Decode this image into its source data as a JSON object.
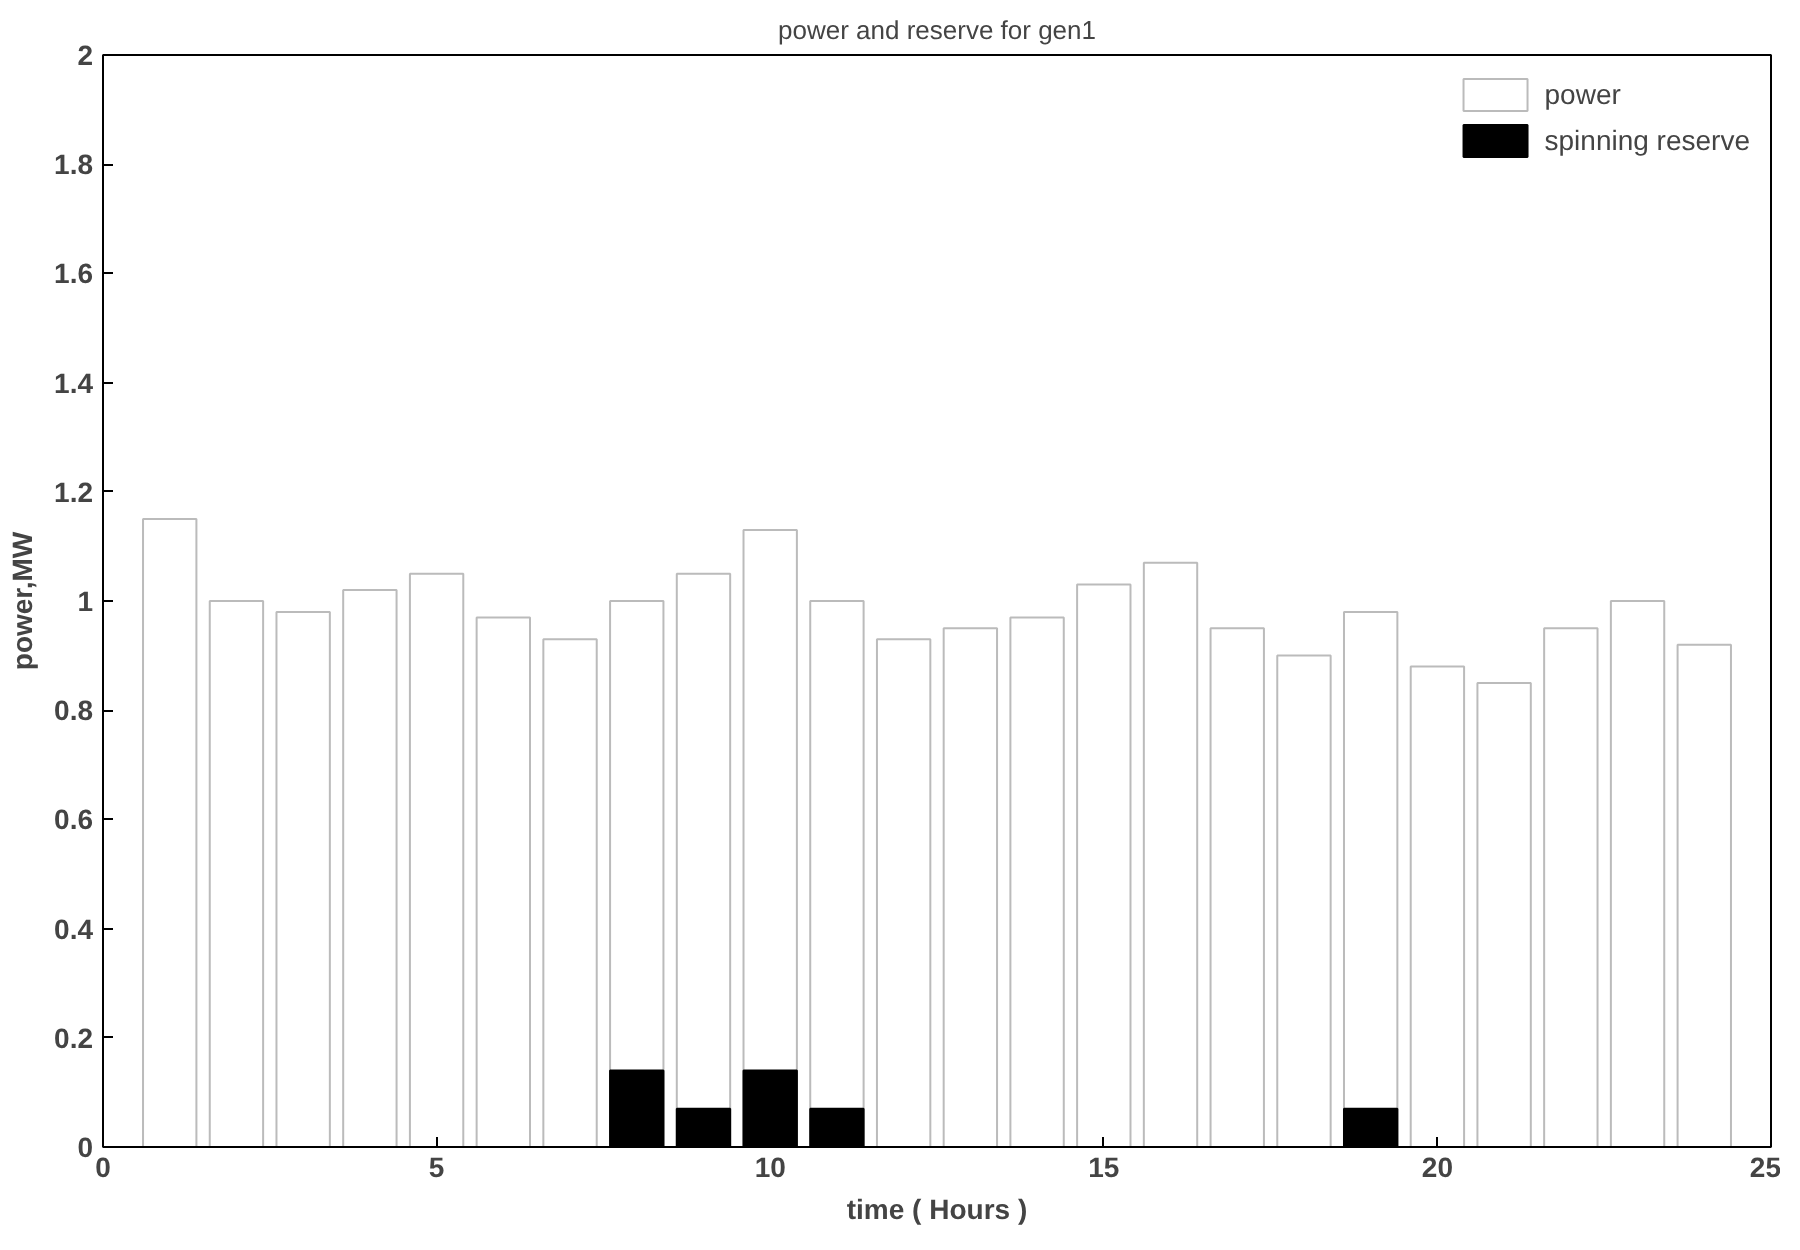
{
  "chart_data": {
    "type": "bar",
    "title": "power and reserve for gen1",
    "xlabel": "time ( Hours )",
    "ylabel": "power,MW",
    "x": [
      1,
      2,
      3,
      4,
      5,
      6,
      7,
      8,
      9,
      10,
      11,
      12,
      13,
      14,
      15,
      16,
      17,
      18,
      19,
      20,
      21,
      22,
      23,
      24
    ],
    "series": [
      {
        "name": "power",
        "color": "#ffffff",
        "values": [
          1.15,
          1.0,
          0.98,
          1.02,
          1.05,
          0.97,
          0.93,
          1.0,
          1.05,
          1.13,
          1.0,
          0.93,
          0.95,
          0.97,
          1.03,
          1.07,
          0.95,
          0.9,
          0.98,
          0.88,
          0.85,
          0.95,
          1.0,
          0.92
        ]
      },
      {
        "name": "spinning reserve",
        "color": "#000000",
        "values": [
          0,
          0,
          0,
          0,
          0,
          0,
          0,
          0.14,
          0.07,
          0.14,
          0.07,
          0,
          0,
          0,
          0,
          0,
          0,
          0,
          0.07,
          0,
          0,
          0,
          0,
          0
        ]
      }
    ],
    "xlim": [
      0,
      25
    ],
    "xticks": [
      0,
      5,
      10,
      15,
      20,
      25
    ],
    "ylim": [
      0,
      2
    ],
    "yticks": [
      0,
      0.2,
      0.4,
      0.6,
      0.8,
      1,
      1.2,
      1.4,
      1.6,
      1.8,
      2
    ],
    "grid": false,
    "legend": "top right"
  }
}
